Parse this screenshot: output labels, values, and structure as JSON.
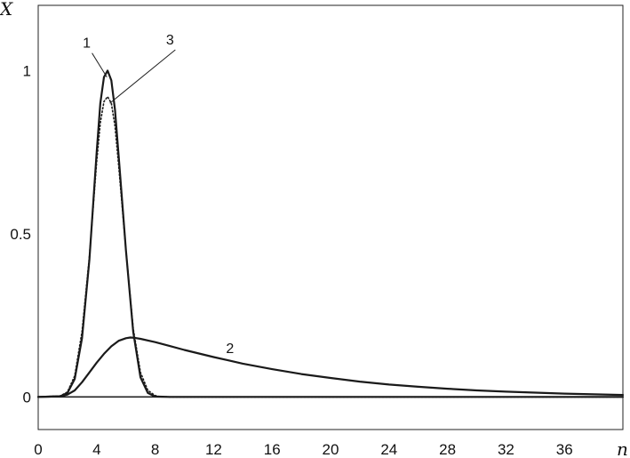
{
  "chart_data": {
    "type": "line",
    "title": "",
    "xlabel": "n",
    "ylabel": "X",
    "xlim": [
      0,
      40
    ],
    "ylim": [
      -0.1,
      1.2
    ],
    "xticks": [
      0,
      4,
      8,
      12,
      16,
      20,
      24,
      28,
      32,
      36
    ],
    "yticks": [
      0,
      0.5,
      1
    ],
    "xtick_labels": [
      "0",
      "4",
      "8",
      "12",
      "16",
      "20",
      "24",
      "28",
      "32",
      "36"
    ],
    "ytick_labels": [
      "0",
      "0.5",
      "1"
    ],
    "grid": false,
    "series": [
      {
        "name": "1",
        "style": "solid",
        "x": [
          0,
          1.5,
          2,
          2.5,
          3,
          3.5,
          4,
          4.25,
          4.5,
          4.75,
          5,
          5.25,
          5.5,
          6,
          6.5,
          7,
          7.5,
          8,
          9,
          12,
          20,
          40
        ],
        "y": [
          0,
          0.002,
          0.012,
          0.055,
          0.18,
          0.42,
          0.75,
          0.9,
          0.98,
          1.0,
          0.97,
          0.88,
          0.74,
          0.45,
          0.2,
          0.06,
          0.012,
          0.001,
          0,
          0,
          0,
          0
        ]
      },
      {
        "name": "2",
        "style": "solid",
        "x": [
          0,
          1.5,
          2,
          2.5,
          3,
          3.5,
          4,
          4.5,
          5,
          5.5,
          6,
          6.3,
          6.6,
          7,
          8,
          9,
          10,
          12,
          14,
          16,
          18,
          20,
          22,
          24,
          26,
          28,
          30,
          32,
          34,
          36,
          38,
          40
        ],
        "y": [
          0,
          0.002,
          0.007,
          0.02,
          0.045,
          0.075,
          0.105,
          0.132,
          0.155,
          0.172,
          0.18,
          0.182,
          0.181,
          0.178,
          0.168,
          0.156,
          0.144,
          0.122,
          0.102,
          0.085,
          0.07,
          0.058,
          0.047,
          0.038,
          0.031,
          0.025,
          0.02,
          0.016,
          0.013,
          0.01,
          0.008,
          0.006
        ]
      },
      {
        "name": "3",
        "style": "dotted",
        "x": [
          0,
          1.5,
          2,
          2.5,
          3,
          3.5,
          4,
          4.25,
          4.5,
          4.75,
          5,
          5.25,
          5.5,
          6,
          6.5,
          7,
          7.5,
          8,
          8.3,
          9,
          12,
          40
        ],
        "y": [
          0,
          0.003,
          0.015,
          0.065,
          0.2,
          0.43,
          0.72,
          0.84,
          0.905,
          0.92,
          0.9,
          0.83,
          0.71,
          0.45,
          0.21,
          0.075,
          0.02,
          0.004,
          0.001,
          0,
          0,
          0
        ]
      }
    ],
    "annotations": [
      {
        "text": "1",
        "x": 3.5,
        "y": 1.07,
        "arrow_to": [
          4.7,
          0.98
        ]
      },
      {
        "text": "3",
        "x": 9.2,
        "y": 1.08,
        "arrow_to": [
          4.9,
          0.9
        ]
      },
      {
        "text": "2",
        "x": 13.3,
        "y": 0.135
      }
    ]
  }
}
